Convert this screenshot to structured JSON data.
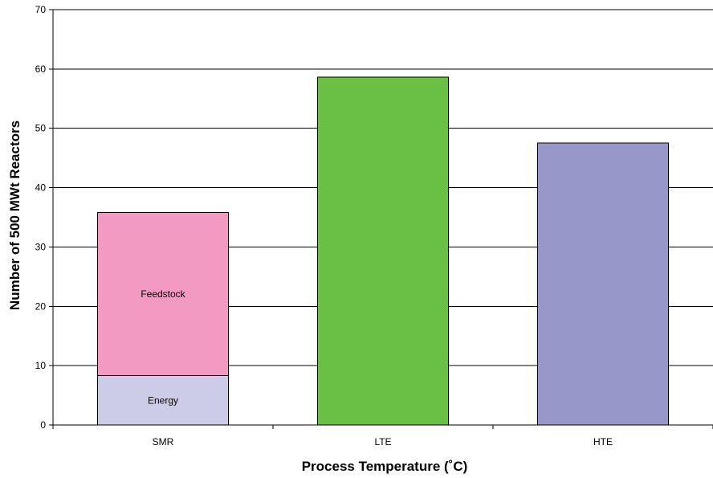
{
  "chart_data": {
    "type": "bar",
    "stacked": true,
    "title": "",
    "xlabel": "Process Temperature (˚C)",
    "ylabel": "Number of 500 MWt Reactors",
    "ylim": [
      0,
      70
    ],
    "yticks": [
      0,
      10,
      20,
      30,
      40,
      50,
      60,
      70
    ],
    "grid": true,
    "categories": [
      "SMR",
      "LTE",
      "HTE"
    ],
    "bars": [
      {
        "category": "SMR",
        "segments": [
          {
            "label": "Energy",
            "value": 8.3,
            "color": "#cccce6"
          },
          {
            "label": "Feedstock",
            "value": 27.5,
            "color": "#f29ac2"
          }
        ]
      },
      {
        "category": "LTE",
        "segments": [
          {
            "label": "",
            "value": 58.6,
            "color": "#6abf45"
          }
        ]
      },
      {
        "category": "HTE",
        "segments": [
          {
            "label": "",
            "value": 47.5,
            "color": "#9797c9"
          }
        ]
      }
    ]
  }
}
